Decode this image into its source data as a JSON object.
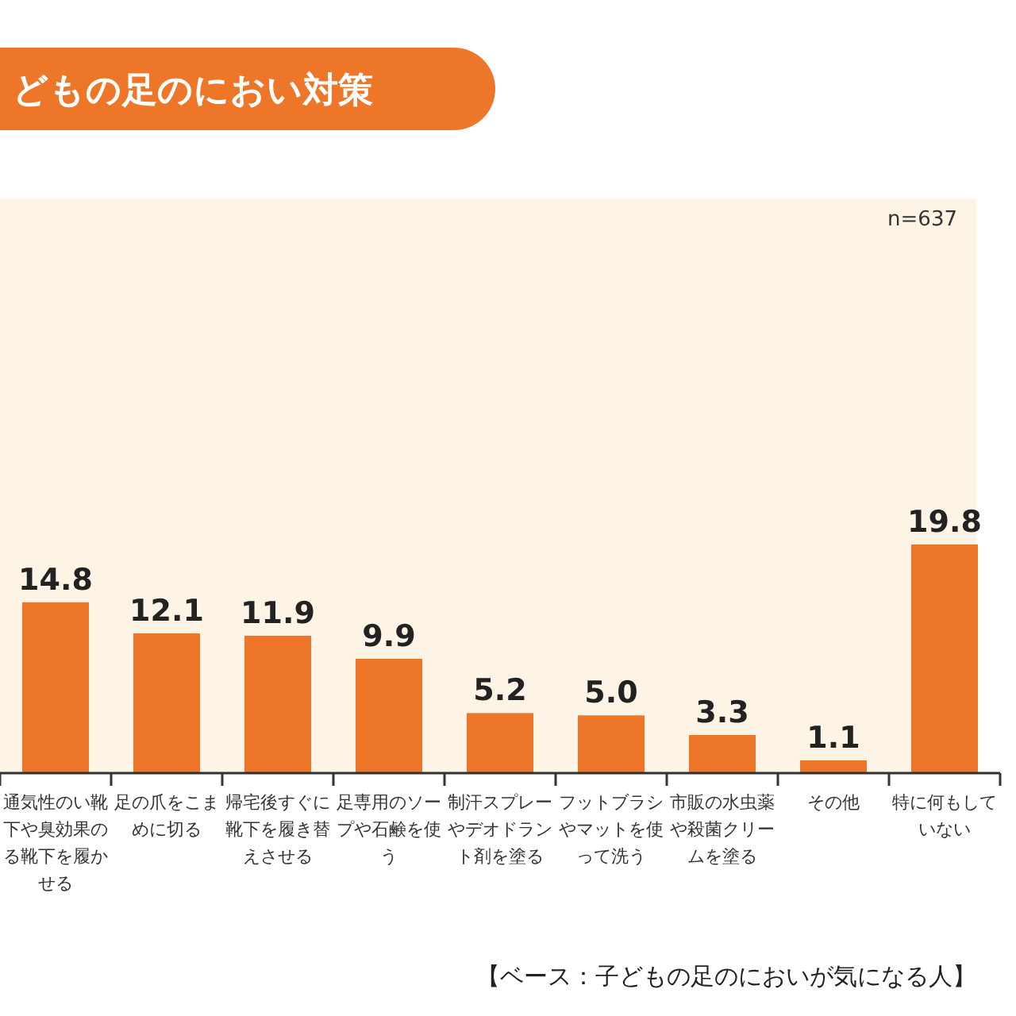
{
  "chart_data": {
    "type": "bar",
    "title": "どもの足のにおい対策",
    "categories": [
      "通気性のい靴下や臭効果のる靴下を履かせる",
      "足の爪をこまめに切る",
      "帰宅後すぐに靴下を履き替えさせる",
      "足専用のソープや石鹸を使う",
      "制汗スプレーやデオドラント剤を塗る",
      "フットブラシやマットを使って洗う",
      "市販の水虫薬や殺菌クリームを塗る",
      "その他",
      "特に何もしていない"
    ],
    "values": [
      14.8,
      12.1,
      11.9,
      9.9,
      5.2,
      5.0,
      3.3,
      1.1,
      19.8
    ],
    "color": "#ee7628",
    "value_labels": [
      "14.8",
      "12.1",
      "11.9",
      "9.9",
      "5.2",
      "5.0",
      "3.3",
      "1.1",
      "19.8"
    ],
    "annotations": [
      "n=637",
      "【ベース：子どもの足のにおいが気になる人】"
    ]
  }
}
